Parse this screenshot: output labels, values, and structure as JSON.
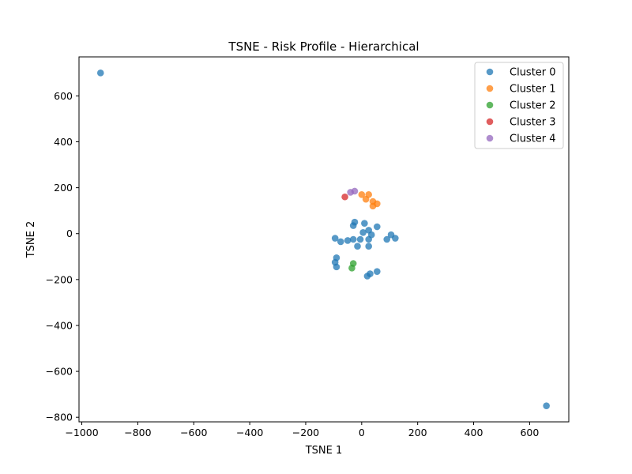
{
  "chart_data": {
    "type": "scatter",
    "title": "TSNE - Risk Profile - Hierarchical",
    "xlabel": "TSNE 1",
    "ylabel": "TSNE 2",
    "xlim": [
      -1010,
      740
    ],
    "ylim": [
      -820,
      770
    ],
    "xticks": [
      -1000,
      -800,
      -600,
      -400,
      -200,
      0,
      200,
      400,
      600
    ],
    "yticks": [
      -800,
      -600,
      -400,
      -200,
      0,
      200,
      400,
      600
    ],
    "grid": false,
    "legend_position": "top-right",
    "series": [
      {
        "name": "Cluster 0",
        "color": "#1f77b4",
        "points": [
          [
            -933,
            700
          ],
          [
            660,
            -750
          ],
          [
            -30,
            35
          ],
          [
            -25,
            50
          ],
          [
            10,
            45
          ],
          [
            55,
            30
          ],
          [
            25,
            15
          ],
          [
            5,
            5
          ],
          [
            35,
            -5
          ],
          [
            105,
            -5
          ],
          [
            120,
            -20
          ],
          [
            90,
            -25
          ],
          [
            -95,
            -20
          ],
          [
            -75,
            -35
          ],
          [
            -50,
            -30
          ],
          [
            -30,
            -25
          ],
          [
            -5,
            -25
          ],
          [
            25,
            -25
          ],
          [
            -15,
            -55
          ],
          [
            25,
            -55
          ],
          [
            -90,
            -105
          ],
          [
            -95,
            -125
          ],
          [
            -90,
            -145
          ],
          [
            30,
            -175
          ],
          [
            55,
            -165
          ],
          [
            20,
            -185
          ]
        ]
      },
      {
        "name": "Cluster 1",
        "color": "#ff7f0e",
        "points": [
          [
            0,
            170
          ],
          [
            25,
            170
          ],
          [
            15,
            150
          ],
          [
            40,
            140
          ],
          [
            55,
            130
          ],
          [
            40,
            120
          ]
        ]
      },
      {
        "name": "Cluster 2",
        "color": "#2ca02c",
        "points": [
          [
            -30,
            -130
          ],
          [
            -35,
            -150
          ]
        ]
      },
      {
        "name": "Cluster 3",
        "color": "#d62728",
        "points": [
          [
            -60,
            160
          ]
        ]
      },
      {
        "name": "Cluster 4",
        "color": "#9467bd",
        "points": [
          [
            -40,
            180
          ],
          [
            -25,
            185
          ]
        ]
      }
    ]
  }
}
